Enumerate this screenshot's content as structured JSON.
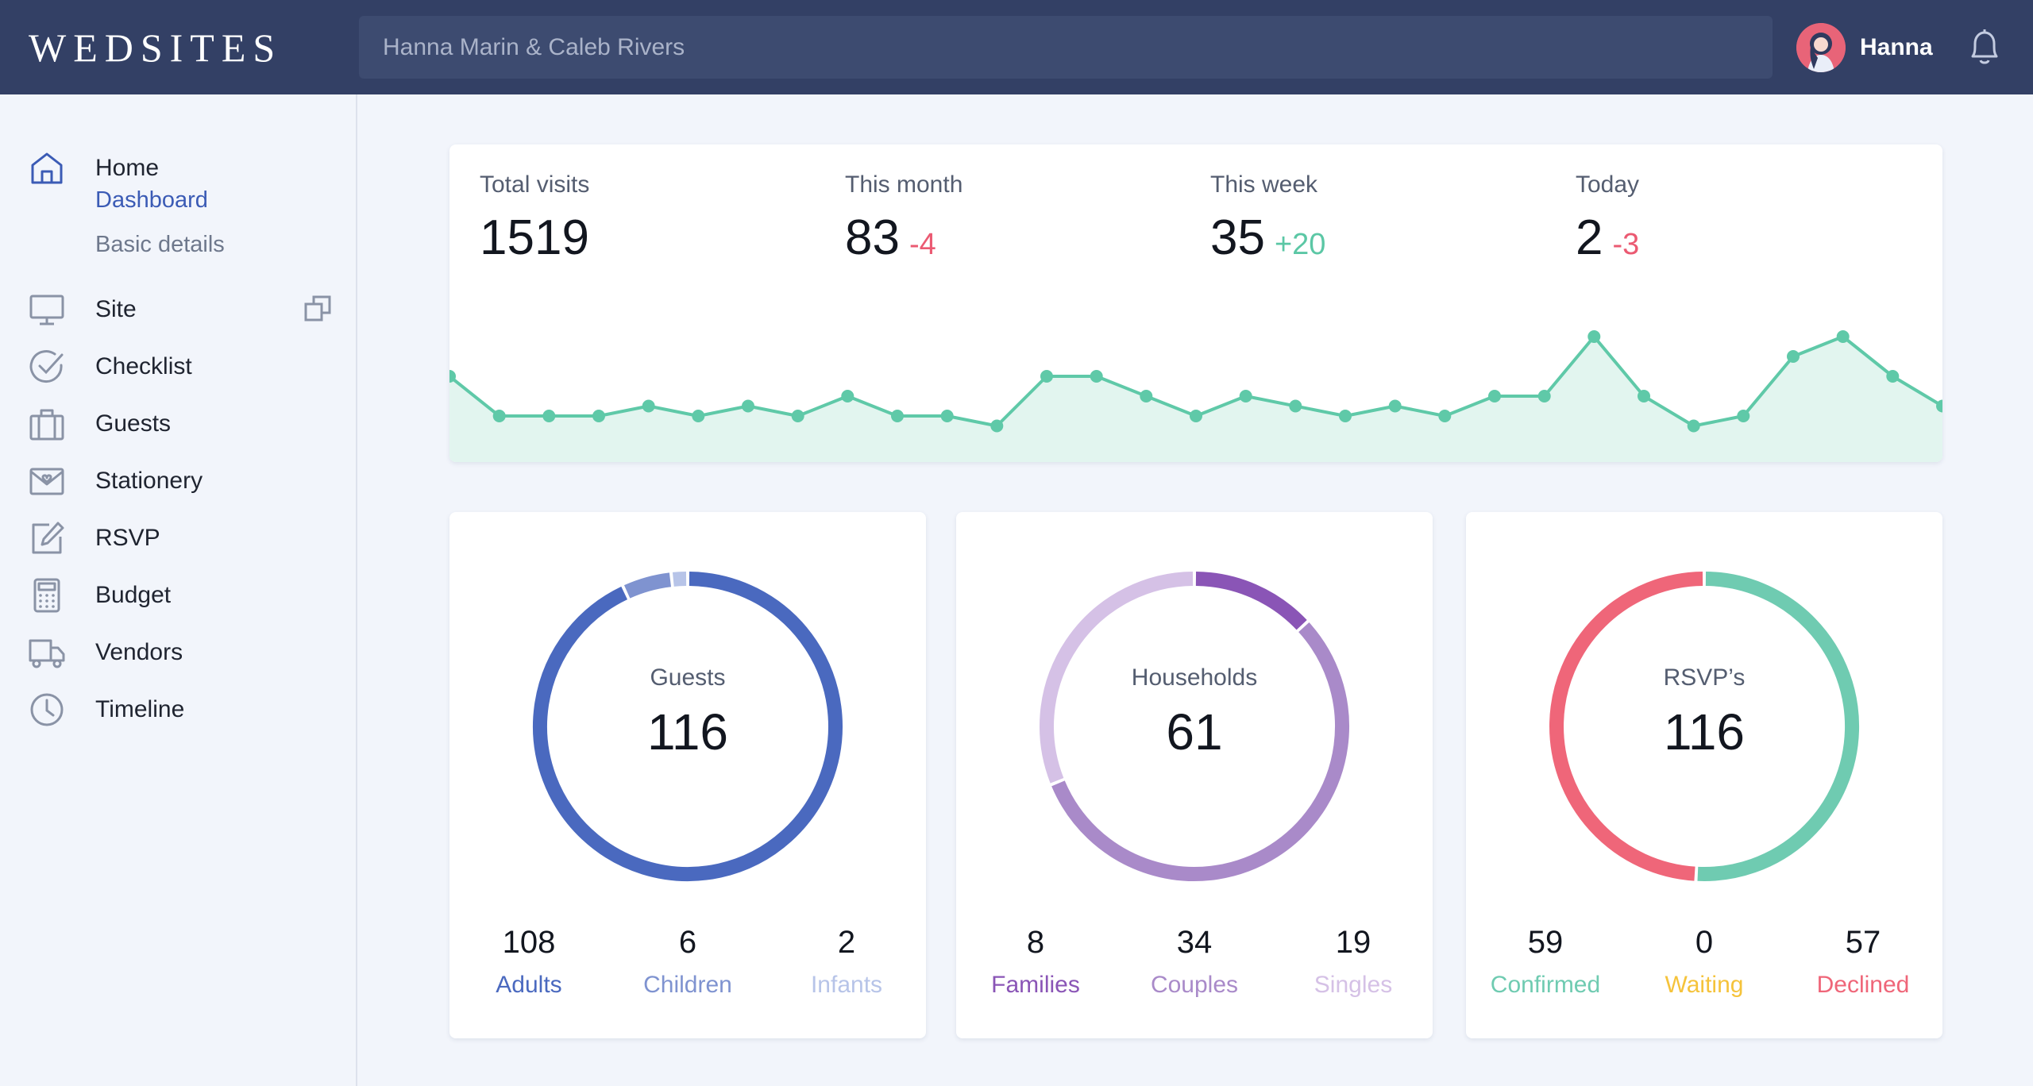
{
  "app": {
    "logo": "WEDSITES"
  },
  "header": {
    "search_placeholder": "Hanna Marin & Caleb Rivers",
    "user_name": "Hanna"
  },
  "sidebar": {
    "home": {
      "label": "Home",
      "subitems": [
        "Dashboard",
        "Basic details"
      ]
    },
    "items": [
      {
        "label": "Site",
        "icon": "monitor-icon"
      },
      {
        "label": "Checklist",
        "icon": "check-circle-icon"
      },
      {
        "label": "Guests",
        "icon": "suitcase-icon"
      },
      {
        "label": "Stationery",
        "icon": "envelope-icon"
      },
      {
        "label": "RSVP",
        "icon": "edit-icon"
      },
      {
        "label": "Budget",
        "icon": "calculator-icon"
      },
      {
        "label": "Vendors",
        "icon": "truck-icon"
      },
      {
        "label": "Timeline",
        "icon": "clock-icon"
      }
    ]
  },
  "visits": {
    "stats": [
      {
        "label": "Total visits",
        "value": "1519",
        "delta": ""
      },
      {
        "label": "This month",
        "value": "83",
        "delta": "-4",
        "trend": "down"
      },
      {
        "label": "This week",
        "value": "35",
        "delta": "+20",
        "trend": "up"
      },
      {
        "label": "Today",
        "value": "2",
        "delta": "-3",
        "trend": "down"
      }
    ]
  },
  "chart_data": [
    {
      "type": "area",
      "series": [
        {
          "values": [
            4,
            2,
            2,
            2,
            2.5,
            2,
            2.5,
            2,
            3,
            2,
            2,
            1.5,
            4,
            4,
            3,
            2,
            3,
            2.5,
            2,
            2.5,
            2,
            3,
            3,
            6,
            3,
            1.5,
            2,
            5,
            6,
            4,
            2.5
          ]
        }
      ],
      "ylim": [
        0,
        8
      ],
      "color": "#5fc9a8",
      "fill": "#e2f5ef"
    },
    {
      "type": "pie",
      "title": "Guests",
      "total": "116",
      "categories": [
        "Adults",
        "Children",
        "Infants"
      ],
      "values": [
        108,
        6,
        2
      ],
      "colors": [
        "#4a69bf",
        "#7f93d0",
        "#b7c4e8"
      ]
    },
    {
      "type": "pie",
      "title": "Households",
      "total": "61",
      "categories": [
        "Families",
        "Couples",
        "Singles"
      ],
      "values": [
        8,
        34,
        19
      ],
      "colors": [
        "#8a55b6",
        "#a98ac9",
        "#d5c1e6"
      ]
    },
    {
      "type": "pie",
      "title": "RSVP’s",
      "total": "116",
      "categories": [
        "Confirmed",
        "Waiting",
        "Declined"
      ],
      "values": [
        59,
        0,
        57
      ],
      "colors": [
        "#6fcbb1",
        "#f5c33b",
        "#ef6679"
      ]
    }
  ],
  "colors": {
    "header_bg": "#334065",
    "accent": "#3b5bb5",
    "positive": "#5bc7a5",
    "negative": "#eb5a72"
  }
}
